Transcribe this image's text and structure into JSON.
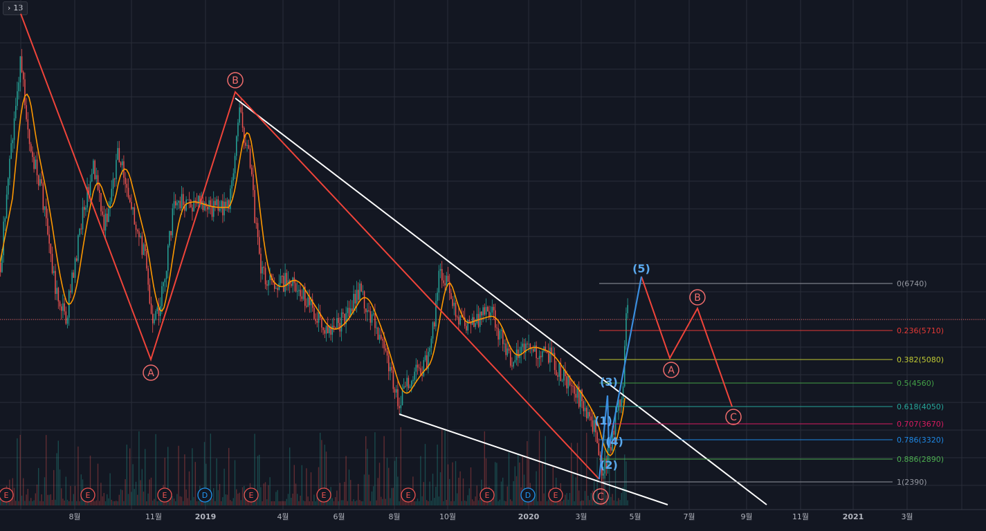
{
  "toolbar": {
    "indicator_count": "13",
    "expand_icon": "chevron-right-icon"
  },
  "colors": {
    "background": "#131722",
    "grid": "#2a2e39",
    "candle_up": "#26a69a",
    "candle_down": "#ef5350",
    "wave_red": "#f0443a",
    "wave_blue": "#3a8dde",
    "trendline": "#ffffff",
    "ma_fast": "#ff9800",
    "ma_mid": "#e53935",
    "ma_slow": "#ffeb3b",
    "label_circle": "#f26d6d",
    "price_line": "#ef5350"
  },
  "chart_data": {
    "type": "candlestick",
    "title": "",
    "x_axis": {
      "ticks": [
        {
          "label": "8월",
          "bold": false
        },
        {
          "label": "11월",
          "bold": false
        },
        {
          "label": "2019",
          "bold": true
        },
        {
          "label": "4월",
          "bold": false
        },
        {
          "label": "6월",
          "bold": false
        },
        {
          "label": "8월",
          "bold": false
        },
        {
          "label": "10월",
          "bold": false
        },
        {
          "label": "2020",
          "bold": true
        },
        {
          "label": "3월",
          "bold": false
        },
        {
          "label": "5월",
          "bold": false
        },
        {
          "label": "7월",
          "bold": false
        },
        {
          "label": "9월",
          "bold": false
        },
        {
          "label": "11월",
          "bold": false
        },
        {
          "label": "2021",
          "bold": true
        },
        {
          "label": "3월",
          "bold": false
        }
      ]
    },
    "price_range": [
      1200,
      12000
    ],
    "current_price": 5950,
    "fib_levels": [
      {
        "ratio": "0",
        "price": 6740,
        "label": "0(6740)",
        "color": "#9598a1"
      },
      {
        "ratio": "0.236",
        "price": 5710,
        "label": "0.236(5710)",
        "color": "#e53935"
      },
      {
        "ratio": "0.382",
        "price": 5080,
        "label": "0.382(5080)",
        "color": "#c0ca33"
      },
      {
        "ratio": "0.5",
        "price": 4560,
        "label": "0.5(4560)",
        "color": "#43a047"
      },
      {
        "ratio": "0.618",
        "price": 4050,
        "label": "0.618(4050)",
        "color": "#26a69a"
      },
      {
        "ratio": "0.707",
        "price": 3670,
        "label": "0.707(3670)",
        "color": "#d81b60"
      },
      {
        "ratio": "0.786",
        "price": 3320,
        "label": "0.786(3320)",
        "color": "#1e88e5"
      },
      {
        "ratio": "0.886",
        "price": 2890,
        "label": "0.886(2890)",
        "color": "#4caf50"
      },
      {
        "ratio": "1",
        "price": 2390,
        "label": "1(2390)",
        "color": "#9598a1"
      }
    ],
    "wave_labels_corrective": [
      "A",
      "B",
      "C",
      "A",
      "B",
      "C"
    ],
    "wave_labels_impulse": [
      "(1)",
      "(2)",
      "(3)",
      "(4)",
      "(5)"
    ],
    "event_markers": [
      "E",
      "E",
      "E",
      "D",
      "E",
      "E",
      "E",
      "E",
      "D",
      "E"
    ]
  }
}
